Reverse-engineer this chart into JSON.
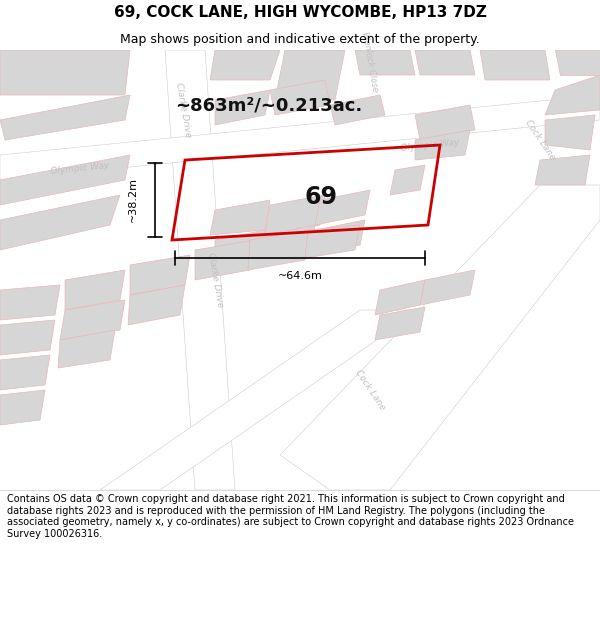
{
  "title": "69, COCK LANE, HIGH WYCOMBE, HP13 7DZ",
  "subtitle": "Map shows position and indicative extent of the property.",
  "area_text": "~863m²/~0.213ac.",
  "label_number": "69",
  "dim_width": "~64.6m",
  "dim_height": "~38.2m",
  "footer": "Contains OS data © Crown copyright and database right 2021. This information is subject to Crown copyright and database rights 2023 and is reproduced with the permission of HM Land Registry. The polygons (including the associated geometry, namely x, y co-ordinates) are subject to Crown copyright and database rights 2023 Ordnance Survey 100026316.",
  "bg_color": "#f0eeeb",
  "block_color": "#d6d6d6",
  "road_color": "#ffffff",
  "border_pink": "#e8b8b8",
  "plot_stroke": "#cc0000",
  "street_label_color": "#bbbbbb",
  "title_fontsize": 11,
  "subtitle_fontsize": 9,
  "footer_fontsize": 7
}
